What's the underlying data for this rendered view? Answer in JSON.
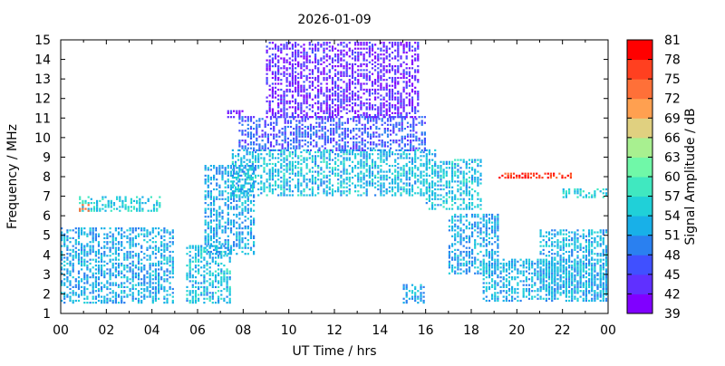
{
  "chart_data": {
    "type": "heatmap",
    "title": "2026-01-09",
    "xlabel": "UT Time / hrs",
    "ylabel": "Frequency / MHz",
    "colorbar_label": "Signal Amplitude / dB",
    "xlim": [
      0,
      24
    ],
    "ylim": [
      1,
      15
    ],
    "x_ticks": [
      "00",
      "02",
      "04",
      "06",
      "08",
      "10",
      "12",
      "14",
      "16",
      "18",
      "20",
      "22",
      "00"
    ],
    "y_ticks": [
      "1",
      "2",
      "3",
      "4",
      "5",
      "6",
      "7",
      "8",
      "9",
      "10",
      "11",
      "12",
      "13",
      "14",
      "15"
    ],
    "colorbar_ticks": [
      "39",
      "42",
      "45",
      "48",
      "51",
      "54",
      "57",
      "60",
      "63",
      "66",
      "69",
      "72",
      "75",
      "78",
      "81"
    ],
    "colorbar_colors": [
      "#8000ff",
      "#6030ff",
      "#4050ff",
      "#2a80f0",
      "#18b0e8",
      "#20d0d8",
      "#40e8c0",
      "#70f8a8",
      "#a8f090",
      "#e0d080",
      "#ffa050",
      "#ff7038",
      "#ff4020",
      "#ff0000"
    ],
    "grid": false,
    "regions": [
      {
        "x": [
          0.0,
          5.0
        ],
        "y": [
          1.5,
          5.3
        ],
        "value": 52
      },
      {
        "x": [
          0.8,
          4.4
        ],
        "y": [
          6.2,
          6.9
        ],
        "value": 55
      },
      {
        "x": [
          5.5,
          7.5
        ],
        "y": [
          1.5,
          4.5
        ],
        "value": 54
      },
      {
        "x": [
          6.3,
          8.5
        ],
        "y": [
          4.0,
          8.5
        ],
        "value": 52
      },
      {
        "x": [
          7.5,
          16.5
        ],
        "y": [
          7.0,
          9.3
        ],
        "value": 54
      },
      {
        "x": [
          7.8,
          16.0
        ],
        "y": [
          9.3,
          11.0
        ],
        "value": 47
      },
      {
        "x": [
          9.0,
          15.7
        ],
        "y": [
          11.0,
          14.8
        ],
        "value": 43
      },
      {
        "x": [
          7.3,
          8.0
        ],
        "y": [
          11.0,
          11.3
        ],
        "value": 42
      },
      {
        "x": [
          16.0,
          18.5
        ],
        "y": [
          6.3,
          8.8
        ],
        "value": 54
      },
      {
        "x": [
          17.0,
          19.2
        ],
        "y": [
          3.0,
          6.0
        ],
        "value": 52
      },
      {
        "x": [
          18.5,
          24.0
        ],
        "y": [
          1.6,
          3.8
        ],
        "value": 53
      },
      {
        "x": [
          21.0,
          24.0
        ],
        "y": [
          2.0,
          5.2
        ],
        "value": 53
      },
      {
        "x": [
          22.0,
          24.0
        ],
        "y": [
          6.9,
          7.3
        ],
        "value": 56
      },
      {
        "x": [
          19.2,
          22.4
        ],
        "y": [
          7.9,
          8.2
        ],
        "value": 78
      },
      {
        "x": [
          0.8,
          1.2
        ],
        "y": [
          6.2,
          6.5
        ],
        "value": 75
      },
      {
        "x": [
          15.0,
          16.0
        ],
        "y": [
          1.5,
          2.5
        ],
        "value": 52
      }
    ]
  }
}
